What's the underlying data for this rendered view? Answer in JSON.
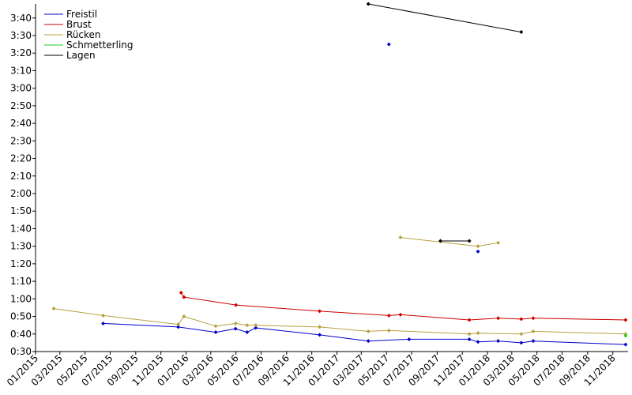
{
  "chart_data": {
    "type": "line",
    "title": "",
    "xlabel": "",
    "ylabel": "",
    "x_type": "date",
    "xlim": [
      "2015-01-01",
      "2018-12-08"
    ],
    "ylim": [
      "0:30",
      "3:48"
    ],
    "grid": false,
    "legend_position": "top-left",
    "x_ticks": [
      "01/2015",
      "03/2015",
      "05/2015",
      "07/2015",
      "09/2015",
      "11/2015",
      "01/2016",
      "03/2016",
      "05/2016",
      "07/2016",
      "09/2016",
      "11/2016",
      "01/2017",
      "03/2017",
      "05/2017",
      "07/2017",
      "09/2017",
      "11/2017",
      "01/2018",
      "03/2018",
      "05/2018",
      "07/2018",
      "09/2018",
      "11/2018"
    ],
    "y_ticks": [
      "0:30",
      "0:40",
      "0:50",
      "1:00",
      "1:10",
      "1:20",
      "1:30",
      "1:40",
      "1:50",
      "2:00",
      "2:10",
      "2:20",
      "2:30",
      "2:40",
      "2:50",
      "3:00",
      "3:10",
      "3:20",
      "3:30",
      "3:40"
    ],
    "series": [
      {
        "name": "Freistil",
        "color": "#0000cc",
        "segments": [
          [
            [
              "2015-06-14",
              "0:46"
            ],
            [
              "2015-12-13",
              "0:44"
            ],
            [
              "2016-03-13",
              "0:41"
            ],
            [
              "2016-04-30",
              "0:43"
            ],
            [
              "2016-05-28",
              "0:41"
            ],
            [
              "2016-06-18",
              "0:43.5"
            ],
            [
              "2016-11-20",
              "0:39.5"
            ],
            [
              "2017-03-18",
              "0:36"
            ],
            [
              "2017-06-25",
              "0:37"
            ],
            [
              "2017-11-18",
              "0:37"
            ],
            [
              "2017-12-09",
              "0:35.5"
            ],
            [
              "2018-01-27",
              "0:36"
            ],
            [
              "2018-03-24",
              "0:35"
            ],
            [
              "2018-04-22",
              "0:36"
            ],
            [
              "2018-12-02",
              "0:34"
            ]
          ],
          [
            [
              "2017-05-07",
              "3:25"
            ]
          ],
          [
            [
              "2017-12-09",
              "1:27"
            ]
          ]
        ]
      },
      {
        "name": "Brust",
        "color": "#cc0000",
        "segments": [
          [
            [
              "2015-12-20",
              "1:03.5"
            ],
            [
              "2015-12-27",
              "1:01"
            ],
            [
              "2016-05-01",
              "0:56.5"
            ],
            [
              "2016-11-20",
              "0:53"
            ],
            [
              "2017-05-07",
              "0:50.5"
            ],
            [
              "2017-06-04",
              "0:51"
            ],
            [
              "2017-11-18",
              "0:48"
            ],
            [
              "2018-01-27",
              "0:49"
            ],
            [
              "2018-03-24",
              "0:48.5"
            ],
            [
              "2018-04-22",
              "0:49"
            ],
            [
              "2018-12-02",
              "0:48"
            ]
          ]
        ]
      },
      {
        "name": "Rücken",
        "color": "#b8a040",
        "segments": [
          [
            [
              "2015-02-14",
              "0:54.5"
            ],
            [
              "2015-06-14",
              "0:50.5"
            ],
            [
              "2015-12-13",
              "0:45.5"
            ],
            [
              "2015-12-27",
              "0:50"
            ],
            [
              "2016-03-13",
              "0:44.5"
            ],
            [
              "2016-04-30",
              "0:46"
            ],
            [
              "2016-05-28",
              "0:45"
            ],
            [
              "2016-06-18",
              "0:45"
            ],
            [
              "2016-11-20",
              "0:44"
            ],
            [
              "2017-03-18",
              "0:41.5"
            ],
            [
              "2017-05-07",
              "0:42"
            ],
            [
              "2017-11-18",
              "0:40"
            ],
            [
              "2017-12-09",
              "0:40.5"
            ],
            [
              "2018-03-24",
              "0:40"
            ],
            [
              "2018-04-22",
              "0:41.5"
            ],
            [
              "2018-12-02",
              "0:40"
            ]
          ],
          [
            [
              "2017-06-04",
              "1:35"
            ],
            [
              "2017-12-09",
              "1:30"
            ],
            [
              "2018-01-27",
              "1:32"
            ]
          ]
        ]
      },
      {
        "name": "Schmetterling",
        "color": "#22cc22",
        "segments": [
          [
            [
              "2018-12-02",
              "0:39"
            ]
          ]
        ]
      },
      {
        "name": "Lagen",
        "color": "#000000",
        "segments": [
          [
            [
              "2017-03-18",
              "3:48"
            ],
            [
              "2018-03-24",
              "3:32"
            ]
          ],
          [
            [
              "2017-09-09",
              "1:33"
            ],
            [
              "2017-11-18",
              "1:33"
            ]
          ]
        ]
      }
    ]
  }
}
